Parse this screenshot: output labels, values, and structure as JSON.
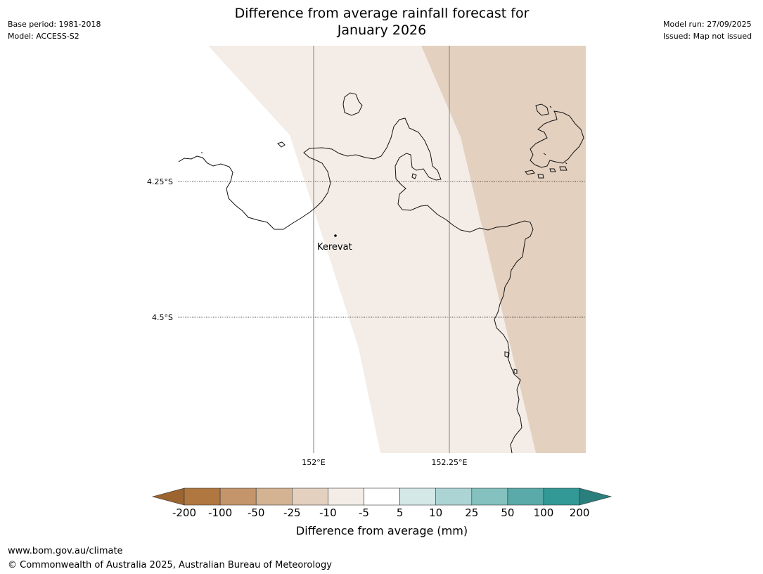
{
  "header": {
    "title_line1": "Difference from average rainfall forecast for",
    "title_line2": "January 2026",
    "base_period": "Base period: 1981-2018",
    "model": "Model: ACCESS-S2",
    "model_run": "Model run: 27/09/2025",
    "issued": "Issued: Map not issued"
  },
  "map": {
    "lat_labels": [
      "4.25°S",
      "4.5°S"
    ],
    "lon_labels": [
      "152°E",
      "152.25°E"
    ],
    "place": "Kerevat",
    "colors": {
      "decile_-25_-10": "#e3d0bf",
      "decile_-10_-5": "#f4ede7",
      "coast": "#111111",
      "gridline": "#808080"
    }
  },
  "colorbar": {
    "title": "Difference from average (mm)",
    "ticks": [
      "-200",
      "-100",
      "-50",
      "-25",
      "-10",
      "-5",
      "5",
      "10",
      "25",
      "50",
      "100",
      "200"
    ],
    "colors": [
      "#9c642e",
      "#b07840",
      "#c4956a",
      "#d4b392",
      "#e3d0bf",
      "#f4ede7",
      "#ffffff",
      "#d5e8e8",
      "#acd4d4",
      "#83c0be",
      "#59aaa8",
      "#339996",
      "#2a7f7c"
    ]
  },
  "footer": {
    "url": "www.bom.gov.au/climate",
    "copyright": "© Commonwealth of Australia 2025, Australian Bureau of Meteorology"
  }
}
